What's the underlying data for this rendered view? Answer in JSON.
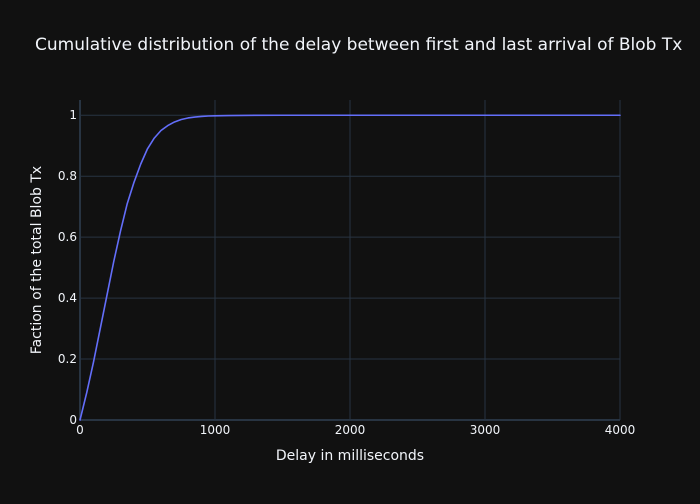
{
  "chart_data": {
    "type": "line",
    "title": "Cumulative distribution of the delay between first and last arrival of Blob Tx",
    "xlabel": "Delay in milliseconds",
    "ylabel": "Faction of the total Blob Tx",
    "xlim": [
      0,
      4000
    ],
    "ylim": [
      0,
      1.05
    ],
    "x_ticks": [
      0,
      1000,
      2000,
      3000,
      4000
    ],
    "x_tick_labels": [
      "0",
      "1000",
      "2000",
      "3000",
      "4000"
    ],
    "y_ticks": [
      0,
      0.2,
      0.4,
      0.6,
      0.8,
      1
    ],
    "y_tick_labels": [
      "0",
      "0.2",
      "0.4",
      "0.6",
      "0.8",
      "1"
    ],
    "grid": true,
    "legend": "none",
    "series": [
      {
        "x": [
          0,
          50,
          100,
          150,
          200,
          250,
          300,
          350,
          400,
          450,
          500,
          550,
          600,
          650,
          700,
          750,
          800,
          850,
          900,
          950,
          1000,
          1100,
          1200,
          1300,
          1500,
          2000,
          2500,
          3000,
          3500,
          4000
        ],
        "y": [
          0,
          0.09,
          0.19,
          0.3,
          0.41,
          0.52,
          0.62,
          0.71,
          0.78,
          0.84,
          0.89,
          0.925,
          0.95,
          0.966,
          0.978,
          0.986,
          0.991,
          0.994,
          0.996,
          0.9975,
          0.998,
          0.999,
          0.9995,
          0.9998,
          1,
          1,
          1,
          1,
          1,
          1
        ]
      }
    ]
  },
  "colors": {
    "background": "#111111",
    "grid": "#283442",
    "text": "#f2f5fa",
    "line": "#636efa"
  }
}
